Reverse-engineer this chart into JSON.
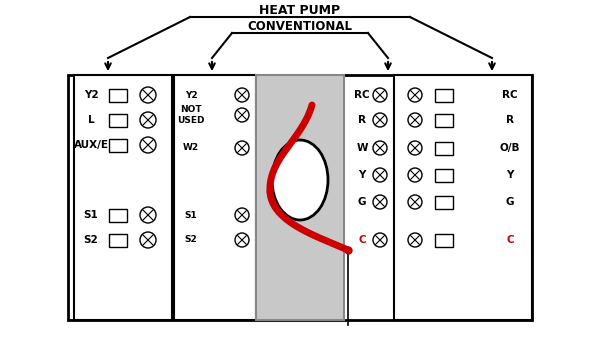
{
  "title_heat_pump": "HEAT PUMP",
  "title_conventional": "CONVENTIONAL",
  "bg_color": "#ffffff",
  "gray_center": "#c8c8c8",
  "wire_color": "#cc0000",
  "left_labels": [
    [
      "Y2",
      95
    ],
    [
      "L",
      120
    ],
    [
      "AUX/E",
      145
    ],
    [
      "S1",
      215
    ],
    [
      "S2",
      240
    ]
  ],
  "center_left_labels": [
    [
      "Y2",
      95
    ],
    [
      "NOT\nUSED",
      115
    ],
    [
      "W2",
      148
    ],
    [
      "S1",
      215
    ],
    [
      "S2",
      240
    ]
  ],
  "right_center_labels": [
    [
      "RC",
      95
    ],
    [
      "R",
      120
    ],
    [
      "W",
      148
    ],
    [
      "Y",
      175
    ],
    [
      "G",
      202
    ],
    [
      "C",
      240
    ]
  ],
  "right_labels": [
    [
      "RC",
      95
    ],
    [
      "R",
      120
    ],
    [
      "O/B",
      148
    ],
    [
      "Y",
      175
    ],
    [
      "G",
      202
    ],
    [
      "C",
      240
    ]
  ],
  "fig_width": 6.0,
  "fig_height": 3.37
}
